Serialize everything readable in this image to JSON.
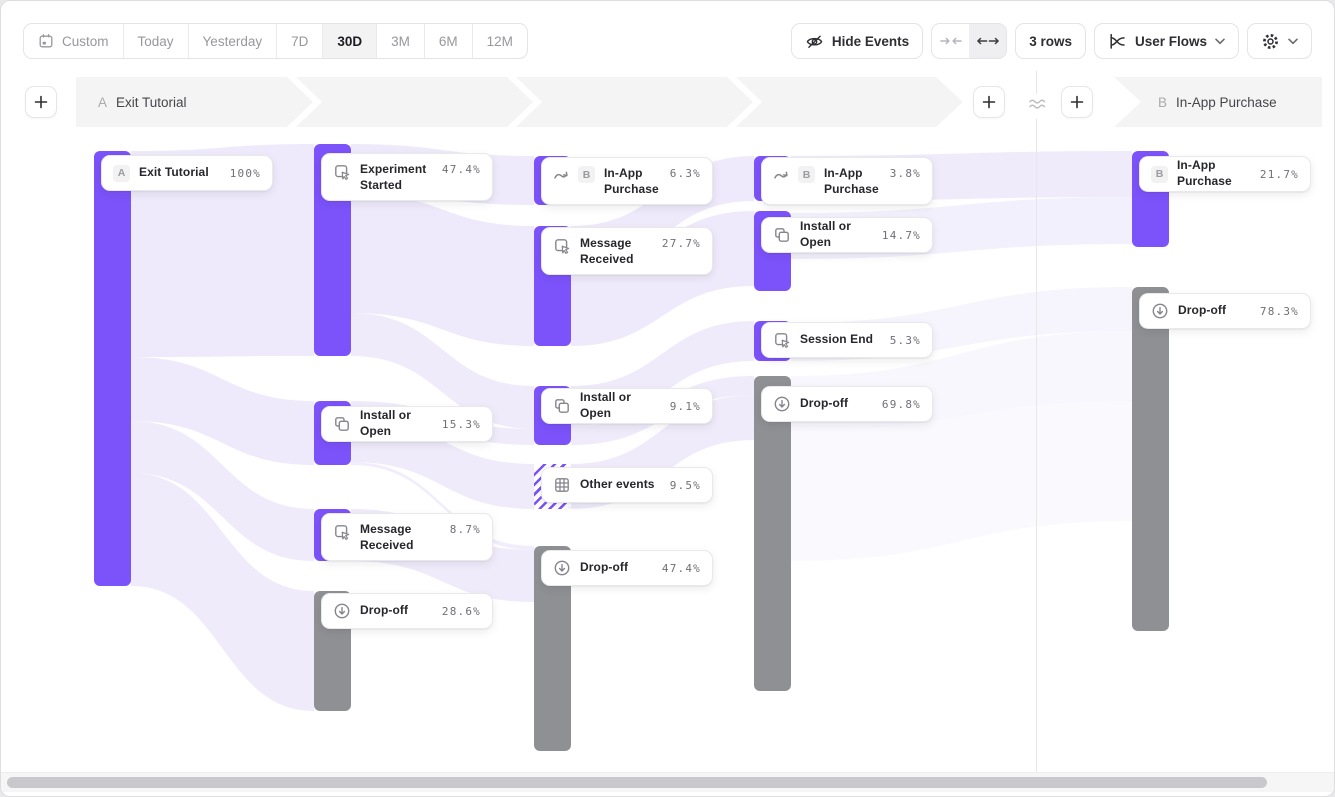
{
  "toolbar": {
    "date_ranges": [
      {
        "label": "Custom",
        "icon": "calendar-icon",
        "selected": false
      },
      {
        "label": "Today",
        "selected": false
      },
      {
        "label": "Yesterday",
        "selected": false
      },
      {
        "label": "7D",
        "selected": false
      },
      {
        "label": "30D",
        "selected": true
      },
      {
        "label": "3M",
        "selected": false
      },
      {
        "label": "6M",
        "selected": false
      },
      {
        "label": "12M",
        "selected": false
      }
    ],
    "hide_events_label": "Hide Events",
    "rows_label": "3 rows",
    "view_selector": {
      "label": "User Flows",
      "icon": "flow-chart-icon"
    },
    "settings_icon": "gear-icon",
    "column_width_toggle": {
      "collapse_icon": "collapse-columns-icon",
      "expand_icon": "expand-columns-icon",
      "expand_selected": true
    }
  },
  "flow_header": {
    "start": {
      "badge": "A",
      "label": "Exit Tutorial"
    },
    "end": {
      "badge": "B",
      "label": "In-App Purchase"
    },
    "approx_icon": "approximate-icon"
  },
  "colors": {
    "event_bar": "#7C52FA",
    "dropoff_bar": "#8E9094",
    "link": "#EDE9FB",
    "band_bg": "#F4F4F5"
  },
  "chart_data": {
    "type": "sankey",
    "title": "User Flows from A Exit Tutorial to B In-App Purchase",
    "legend_position": "none",
    "columns": 5,
    "nodes": [
      {
        "column": 0,
        "label": "Exit Tutorial",
        "badge": "A",
        "pct": "100%",
        "value": 100,
        "kind": "event"
      },
      {
        "column": 1,
        "label": "Experiment Started",
        "icon": "click-icon",
        "pct": "47.4%",
        "value": 47.4,
        "kind": "event"
      },
      {
        "column": 1,
        "label": "Install or Open",
        "icon": "install-icon",
        "pct": "15.3%",
        "value": 15.3,
        "kind": "event"
      },
      {
        "column": 1,
        "label": "Message Received",
        "icon": "click-icon",
        "pct": "8.7%",
        "value": 8.7,
        "kind": "event"
      },
      {
        "column": 1,
        "label": "Drop-off",
        "icon": "dropoff-icon",
        "pct": "28.6%",
        "value": 28.6,
        "kind": "dropoff"
      },
      {
        "column": 2,
        "label": "In-App Purchase",
        "icon": "jump-icon",
        "badge": "B",
        "pct": "6.3%",
        "value": 6.3,
        "kind": "event"
      },
      {
        "column": 2,
        "label": "Message Received",
        "icon": "click-icon",
        "pct": "27.7%",
        "value": 27.7,
        "kind": "event"
      },
      {
        "column": 2,
        "label": "Install or Open",
        "icon": "install-icon",
        "pct": "9.1%",
        "value": 9.1,
        "kind": "event"
      },
      {
        "column": 2,
        "label": "Other events",
        "icon": "grid-icon",
        "pct": "9.5%",
        "value": 9.5,
        "kind": "other"
      },
      {
        "column": 2,
        "label": "Drop-off",
        "icon": "dropoff-icon",
        "pct": "47.4%",
        "value": 47.4,
        "kind": "dropoff"
      },
      {
        "column": 3,
        "label": "In-App Purchase",
        "icon": "jump-icon",
        "badge": "B",
        "pct": "3.8%",
        "value": 3.8,
        "kind": "event"
      },
      {
        "column": 3,
        "label": "Install or Open",
        "icon": "install-icon",
        "pct": "14.7%",
        "value": 14.7,
        "kind": "event"
      },
      {
        "column": 3,
        "label": "Session End",
        "icon": "click-icon",
        "pct": "5.3%",
        "value": 5.3,
        "kind": "event"
      },
      {
        "column": 3,
        "label": "Drop-off",
        "icon": "dropoff-icon",
        "pct": "69.8%",
        "value": 69.8,
        "kind": "dropoff"
      },
      {
        "column": 4,
        "label": "In-App Purchase",
        "badge": "B",
        "pct": "21.7%",
        "value": 21.7,
        "kind": "event"
      },
      {
        "column": 4,
        "label": "Drop-off",
        "icon": "dropoff-icon",
        "pct": "78.3%",
        "value": 78.3,
        "kind": "dropoff"
      }
    ]
  }
}
